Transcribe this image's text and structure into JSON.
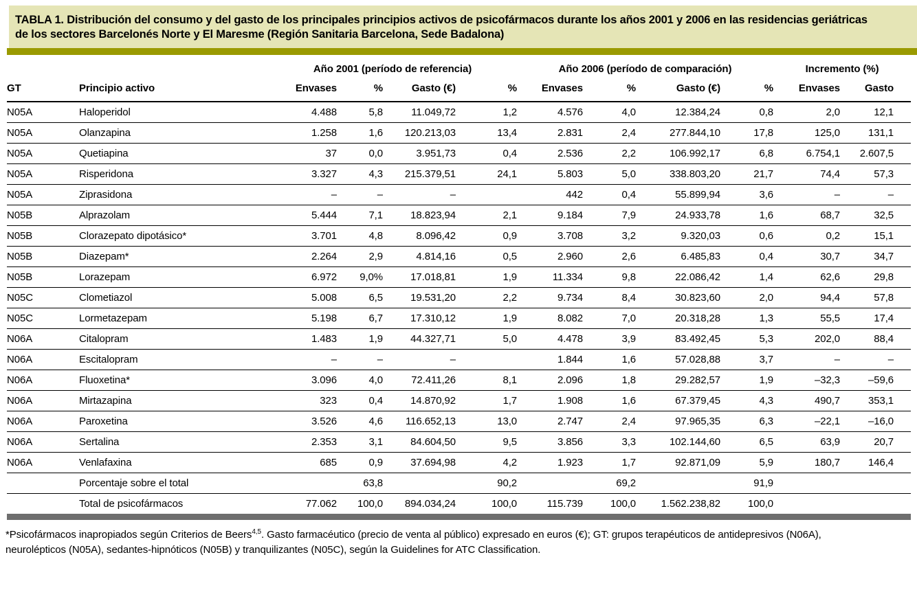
{
  "title_lines": [
    "TABLA 1. Distribución del consumo y del gasto de los principales principios activos de psicofármacos durante los años 2001 y 2006 en las residencias geriátricas",
    "de los sectores Barcelonés Norte y El Maresme (Región Sanitaria Barcelona, Sede Badalona)"
  ],
  "colors": {
    "title_bg": "#e5e5b6",
    "olive_bar": "#9a9a00",
    "bottom_bar": "#6e6e6e"
  },
  "table": {
    "group_headers": [
      "Año 2001 (período de referencia)",
      "Año 2006 (período de comparación)",
      "Incremento (%)"
    ],
    "columns": [
      "GT",
      "Principio activo",
      "Envases",
      "%",
      "Gasto (€)",
      "%",
      "Envases",
      "%",
      "Gasto (€)",
      "%",
      "Envases",
      "Gasto"
    ],
    "rows": [
      [
        "N05A",
        "Haloperidol",
        "4.488",
        "5,8",
        "11.049,72",
        "1,2",
        "4.576",
        "4,0",
        "12.384,24",
        "0,8",
        "2,0",
        "12,1"
      ],
      [
        "N05A",
        "Olanzapina",
        "1.258",
        "1,6",
        "120.213,03",
        "13,4",
        "2.831",
        "2,4",
        "277.844,10",
        "17,8",
        "125,0",
        "131,1"
      ],
      [
        "N05A",
        "Quetiapina",
        "37",
        "0,0",
        "3.951,73",
        "0,4",
        "2.536",
        "2,2",
        "106.992,17",
        "6,8",
        "6.754,1",
        "2.607,5"
      ],
      [
        "N05A",
        "Risperidona",
        "3.327",
        "4,3",
        "215.379,51",
        "24,1",
        "5.803",
        "5,0",
        "338.803,20",
        "21,7",
        "74,4",
        "57,3"
      ],
      [
        "N05A",
        "Ziprasidona",
        "–",
        "–",
        "–",
        "",
        "442",
        "0,4",
        "55.899,94",
        "3,6",
        "–",
        "–"
      ],
      [
        "N05B",
        "Alprazolam",
        "5.444",
        "7,1",
        "18.823,94",
        "2,1",
        "9.184",
        "7,9",
        "24.933,78",
        "1,6",
        "68,7",
        "32,5"
      ],
      [
        "N05B",
        "Clorazepato dipotásico*",
        "3.701",
        "4,8",
        "8.096,42",
        "0,9",
        "3.708",
        "3,2",
        "9.320,03",
        "0,6",
        "0,2",
        "15,1"
      ],
      [
        "N05B",
        "Diazepam*",
        "2.264",
        "2,9",
        "4.814,16",
        "0,5",
        "2.960",
        "2,6",
        "6.485,83",
        "0,4",
        "30,7",
        "34,7"
      ],
      [
        "N05B",
        "Lorazepam",
        "6.972",
        "9,0%",
        "17.018,81",
        "1,9",
        "11.334",
        "9,8",
        "22.086,42",
        "1,4",
        "62,6",
        "29,8"
      ],
      [
        "N05C",
        "Clometiazol",
        "5.008",
        "6,5",
        "19.531,20",
        "2,2",
        "9.734",
        "8,4",
        "30.823,60",
        "2,0",
        "94,4",
        "57,8"
      ],
      [
        "N05C",
        "Lormetazepam",
        "5.198",
        "6,7",
        "17.310,12",
        "1,9",
        "8.082",
        "7,0",
        "20.318,28",
        "1,3",
        "55,5",
        "17,4"
      ],
      [
        "N06A",
        "Citalopram",
        "1.483",
        "1,9",
        "44.327,71",
        "5,0",
        "4.478",
        "3,9",
        "83.492,45",
        "5,3",
        "202,0",
        "88,4"
      ],
      [
        "N06A",
        "Escitalopram",
        "–",
        "–",
        "–",
        "",
        "1.844",
        "1,6",
        "57.028,88",
        "3,7",
        "–",
        "–"
      ],
      [
        "N06A",
        "Fluoxetina*",
        "3.096",
        "4,0",
        "72.411,26",
        "8,1",
        "2.096",
        "1,8",
        "29.282,57",
        "1,9",
        "–32,3",
        "–59,6"
      ],
      [
        "N06A",
        "Mirtazapina",
        "323",
        "0,4",
        "14.870,92",
        "1,7",
        "1.908",
        "1,6",
        "67.379,45",
        "4,3",
        "490,7",
        "353,1"
      ],
      [
        "N06A",
        "Paroxetina",
        "3.526",
        "4,6",
        "116.652,13",
        "13,0",
        "2.747",
        "2,4",
        "97.965,35",
        "6,3",
        "–22,1",
        "–16,0"
      ],
      [
        "N06A",
        "Sertalina",
        "2.353",
        "3,1",
        "84.604,50",
        "9,5",
        "3.856",
        "3,3",
        "102.144,60",
        "6,5",
        "63,9",
        "20,7"
      ],
      [
        "N06A",
        "Venlafaxina",
        "685",
        "0,9",
        "37.694,98",
        "4,2",
        "1.923",
        "1,7",
        "92.871,09",
        "5,9",
        "180,7",
        "146,4"
      ],
      [
        "",
        "Porcentaje sobre el total",
        "",
        "63,8",
        "",
        "90,2",
        "",
        "69,2",
        "",
        "91,9",
        "",
        ""
      ],
      [
        "",
        "Total de psicofármacos",
        "77.062",
        "100,0",
        "894.034,24",
        "100,0",
        "115.739",
        "100,0",
        "1.562.238,82",
        "100,0",
        "",
        ""
      ]
    ]
  },
  "footnote": {
    "line1_pre": "*Psicofármacos inapropiados según Criterios de Beers",
    "line1_sup": "4,5",
    "line1_post": ". Gasto farmacéutico (precio de venta al público) expresado en euros (€); GT: grupos terapéuticos de antidepresivos (N06A),",
    "line2": "neurolépticos (N05A), sedantes-hipnóticos (N05B) y tranquilizantes (N05C), según la Guidelines for ATC Classification."
  }
}
